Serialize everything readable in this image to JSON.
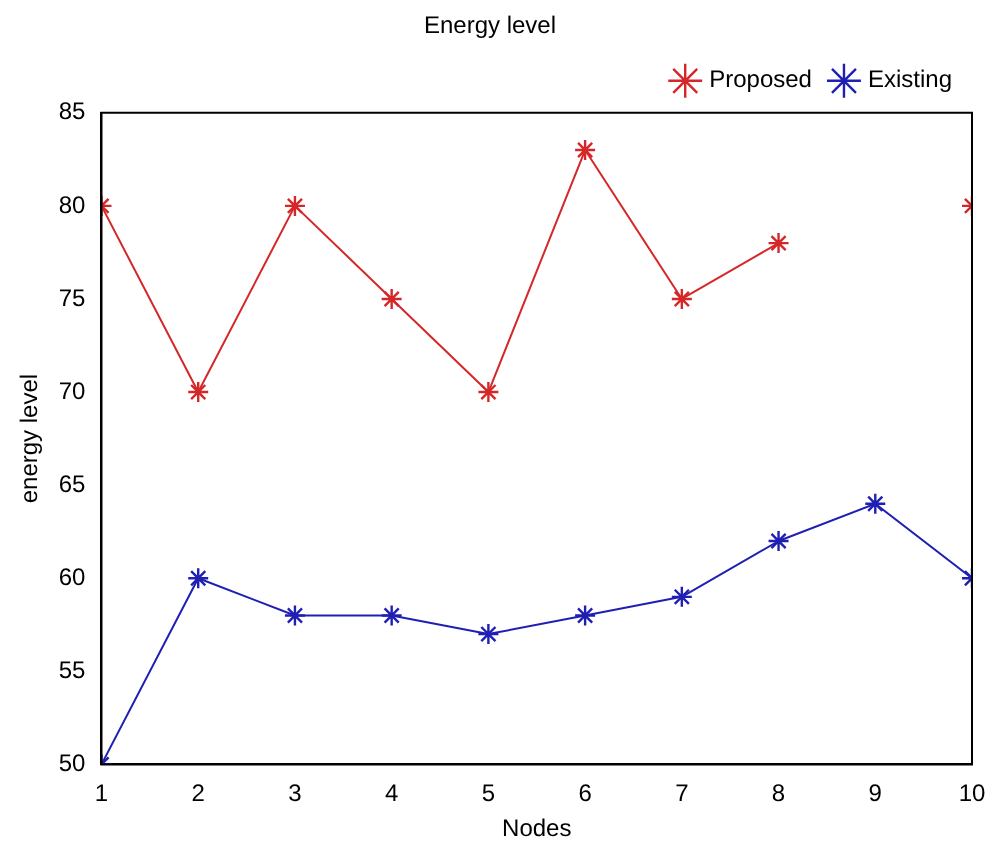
{
  "chart_data": {
    "type": "line",
    "title": "Energy level",
    "xlabel": "Nodes",
    "ylabel": "energy level",
    "x": [
      1,
      2,
      3,
      4,
      5,
      6,
      7,
      8,
      9,
      10
    ],
    "series": [
      {
        "name": "Proposed",
        "color": "#d62728",
        "values": [
          80,
          70,
          80,
          75,
          70,
          83,
          75,
          78,
          null,
          80
        ]
      },
      {
        "name": "Existing",
        "color": "#1f1fb4",
        "values": [
          50,
          60,
          58,
          58,
          57,
          58,
          59,
          62,
          64,
          60
        ]
      }
    ],
    "xlim": [
      1,
      10
    ],
    "xticks": [
      1,
      2,
      3,
      4,
      5,
      6,
      7,
      8,
      9,
      10
    ],
    "ylim": [
      50,
      85
    ],
    "yticks": [
      50,
      55,
      60,
      65,
      70,
      75,
      80,
      85
    ],
    "grid": false,
    "legend": "top right",
    "marker": "cross",
    "line_style": "solid"
  }
}
